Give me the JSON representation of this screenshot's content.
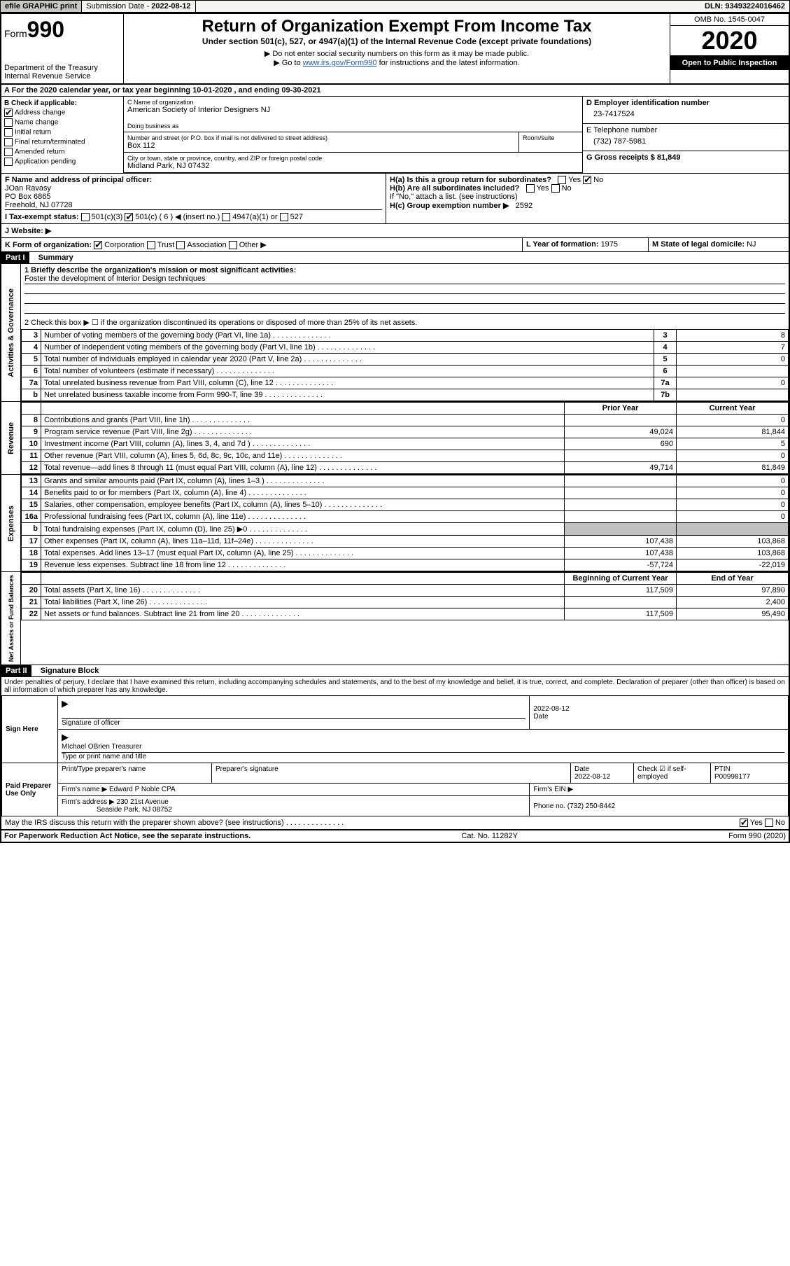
{
  "topbar": {
    "efile": "efile GRAPHIC print",
    "sub_lbl": "Submission Date - ",
    "sub_date": "2022-08-12",
    "dln": "DLN: 93493224016462"
  },
  "header": {
    "form_prefix": "Form",
    "form_num": "990",
    "dept1": "Department of the Treasury",
    "dept2": "Internal Revenue Service",
    "title": "Return of Organization Exempt From Income Tax",
    "sub1": "Under section 501(c), 527, or 4947(a)(1) of the Internal Revenue Code (except private foundations)",
    "sub2": "▶ Do not enter social security numbers on this form as it may be made public.",
    "sub3a": "▶ Go to ",
    "sub3b": "www.irs.gov/Form990",
    "sub3c": " for instructions and the latest information.",
    "omb": "OMB No. 1545-0047",
    "year": "2020",
    "open": "Open to Public Inspection"
  },
  "line_a": "A For the 2020 calendar year, or tax year beginning 10-01-2020   , and ending 09-30-2021",
  "col_b": {
    "hdr": "B Check if applicable:",
    "opts": [
      "Address change",
      "Name change",
      "Initial return",
      "Final return/terminated",
      "Amended return",
      "Application pending"
    ],
    "checked": [
      true,
      false,
      false,
      false,
      false,
      false
    ]
  },
  "col_c": {
    "name_lbl": "C Name of organization",
    "name": "American Society of Interior Designers NJ",
    "dba_lbl": "Doing business as",
    "dba": "",
    "addr_lbl": "Number and street (or P.O. box if mail is not delivered to street address)",
    "addr": "Box 112",
    "room_lbl": "Room/suite",
    "city_lbl": "City or town, state or province, country, and ZIP or foreign postal code",
    "city": "Midland Park, NJ  07432"
  },
  "col_d": {
    "ein_lbl": "D Employer identification number",
    "ein": "23-7417524",
    "tel_lbl": "E Telephone number",
    "tel": "(732) 787-5981",
    "gross_lbl": "G Gross receipts $ ",
    "gross": "81,849"
  },
  "row_f": {
    "f_lbl": "F  Name and address of principal officer:",
    "f_name": "JOan Ravasy",
    "f_addr1": "PO Box 6865",
    "f_addr2": "Freehold, NJ  07728",
    "ha_lbl": "H(a)  Is this a group return for subordinates?",
    "hb_lbl": "H(b)  Are all subordinates included?",
    "h_note": "If \"No,\" attach a list. (see instructions)",
    "hc_lbl": "H(c)  Group exemption number ▶",
    "hc_val": "2592",
    "yes": "Yes",
    "no": "No"
  },
  "row_i": {
    "lbl": "I  Tax-exempt status:",
    "o1": "501(c)(3)",
    "o2": "501(c) ( 6 ) ◀ (insert no.)",
    "o3": "4947(a)(1) or",
    "o4": "527"
  },
  "row_j": {
    "lbl": "J  Website: ▶"
  },
  "row_k": {
    "lbl": "K Form of organization:",
    "o1": "Corporation",
    "o2": "Trust",
    "o3": "Association",
    "o4": "Other ▶",
    "l_lbl": "L Year of formation: ",
    "l_val": "1975",
    "m_lbl": "M State of legal domicile: ",
    "m_val": "NJ"
  },
  "part1": {
    "hdr": "Part I",
    "title": "Summary",
    "q1": "1  Briefly describe the organization's mission or most significant activities:",
    "q1_ans": "Foster the development of Interior Design techniques",
    "q2": "2   Check this box ▶ ☐  if the organization discontinued its operations or disposed of more than 25% of its net assets.",
    "rows_ag": [
      {
        "n": "3",
        "t": "Number of voting members of the governing body (Part VI, line 1a)",
        "rn": "3",
        "v": "8"
      },
      {
        "n": "4",
        "t": "Number of independent voting members of the governing body (Part VI, line 1b)",
        "rn": "4",
        "v": "7"
      },
      {
        "n": "5",
        "t": "Total number of individuals employed in calendar year 2020 (Part V, line 2a)",
        "rn": "5",
        "v": "0"
      },
      {
        "n": "6",
        "t": "Total number of volunteers (estimate if necessary)",
        "rn": "6",
        "v": ""
      },
      {
        "n": "7a",
        "t": "Total unrelated business revenue from Part VIII, column (C), line 12",
        "rn": "7a",
        "v": "0"
      },
      {
        "n": "b",
        "t": "Net unrelated business taxable income from Form 990-T, line 39",
        "rn": "7b",
        "v": ""
      }
    ],
    "col_hdr_prior": "Prior Year",
    "col_hdr_curr": "Current Year",
    "rev_rows": [
      {
        "n": "8",
        "t": "Contributions and grants (Part VIII, line 1h)",
        "p": "",
        "c": "0"
      },
      {
        "n": "9",
        "t": "Program service revenue (Part VIII, line 2g)",
        "p": "49,024",
        "c": "81,844"
      },
      {
        "n": "10",
        "t": "Investment income (Part VIII, column (A), lines 3, 4, and 7d )",
        "p": "690",
        "c": "5"
      },
      {
        "n": "11",
        "t": "Other revenue (Part VIII, column (A), lines 5, 6d, 8c, 9c, 10c, and 11e)",
        "p": "",
        "c": "0"
      },
      {
        "n": "12",
        "t": "Total revenue—add lines 8 through 11 (must equal Part VIII, column (A), line 12)",
        "p": "49,714",
        "c": "81,849"
      }
    ],
    "exp_rows": [
      {
        "n": "13",
        "t": "Grants and similar amounts paid (Part IX, column (A), lines 1–3 )",
        "p": "",
        "c": "0"
      },
      {
        "n": "14",
        "t": "Benefits paid to or for members (Part IX, column (A), line 4)",
        "p": "",
        "c": "0"
      },
      {
        "n": "15",
        "t": "Salaries, other compensation, employee benefits (Part IX, column (A), lines 5–10)",
        "p": "",
        "c": "0"
      },
      {
        "n": "16a",
        "t": "Professional fundraising fees (Part IX, column (A), line 11e)",
        "p": "",
        "c": "0"
      },
      {
        "n": "b",
        "t": "Total fundraising expenses (Part IX, column (D), line 25) ▶0",
        "p": "GREY",
        "c": "GREY"
      },
      {
        "n": "17",
        "t": "Other expenses (Part IX, column (A), lines 11a–11d, 11f–24e)",
        "p": "107,438",
        "c": "103,868"
      },
      {
        "n": "18",
        "t": "Total expenses. Add lines 13–17 (must equal Part IX, column (A), line 25)",
        "p": "107,438",
        "c": "103,868"
      },
      {
        "n": "19",
        "t": "Revenue less expenses. Subtract line 18 from line 12",
        "p": "-57,724",
        "c": "-22,019"
      }
    ],
    "na_hdr_beg": "Beginning of Current Year",
    "na_hdr_end": "End of Year",
    "na_rows": [
      {
        "n": "20",
        "t": "Total assets (Part X, line 16)",
        "p": "117,509",
        "c": "97,890"
      },
      {
        "n": "21",
        "t": "Total liabilities (Part X, line 26)",
        "p": "",
        "c": "2,400"
      },
      {
        "n": "22",
        "t": "Net assets or fund balances. Subtract line 21 from line 20",
        "p": "117,509",
        "c": "95,490"
      }
    ],
    "side_ag": "Activities & Governance",
    "side_rev": "Revenue",
    "side_exp": "Expenses",
    "side_na": "Net Assets or Fund Balances"
  },
  "part2": {
    "hdr": "Part II",
    "title": "Signature Block",
    "decl": "Under penalties of perjury, I declare that I have examined this return, including accompanying schedules and statements, and to the best of my knowledge and belief, it is true, correct, and complete. Declaration of preparer (other than officer) is based on all information of which preparer has any knowledge.",
    "sign_here": "Sign Here",
    "sig_lbl": "Signature of officer",
    "date_lbl": "Date",
    "sig_date": "2022-08-12",
    "officer": "MIchael OBrien  Treasurer",
    "officer_lbl": "Type or print name and title",
    "paid": "Paid Preparer Use Only",
    "pp_name_lbl": "Print/Type preparer's name",
    "pp_sig_lbl": "Preparer's signature",
    "pp_date_lbl": "Date",
    "pp_date": "2022-08-12",
    "pp_check": "Check ☑ if self-employed",
    "ptin_lbl": "PTIN",
    "ptin": "P00998177",
    "firm_name_lbl": "Firm's name    ▶",
    "firm_name": "Edward P Noble CPA",
    "firm_ein_lbl": "Firm's EIN ▶",
    "firm_addr_lbl": "Firm's address ▶",
    "firm_addr1": "230 21st Avenue",
    "firm_addr2": "Seaside Park, NJ  08752",
    "phone_lbl": "Phone no. ",
    "phone": "(732) 250-8442",
    "irs_q": "May the IRS discuss this return with the preparer shown above? (see instructions)",
    "yes": "Yes",
    "no": "No"
  },
  "footer": {
    "left": "For Paperwork Reduction Act Notice, see the separate instructions.",
    "mid": "Cat. No. 11282Y",
    "right": "Form 990 (2020)"
  }
}
